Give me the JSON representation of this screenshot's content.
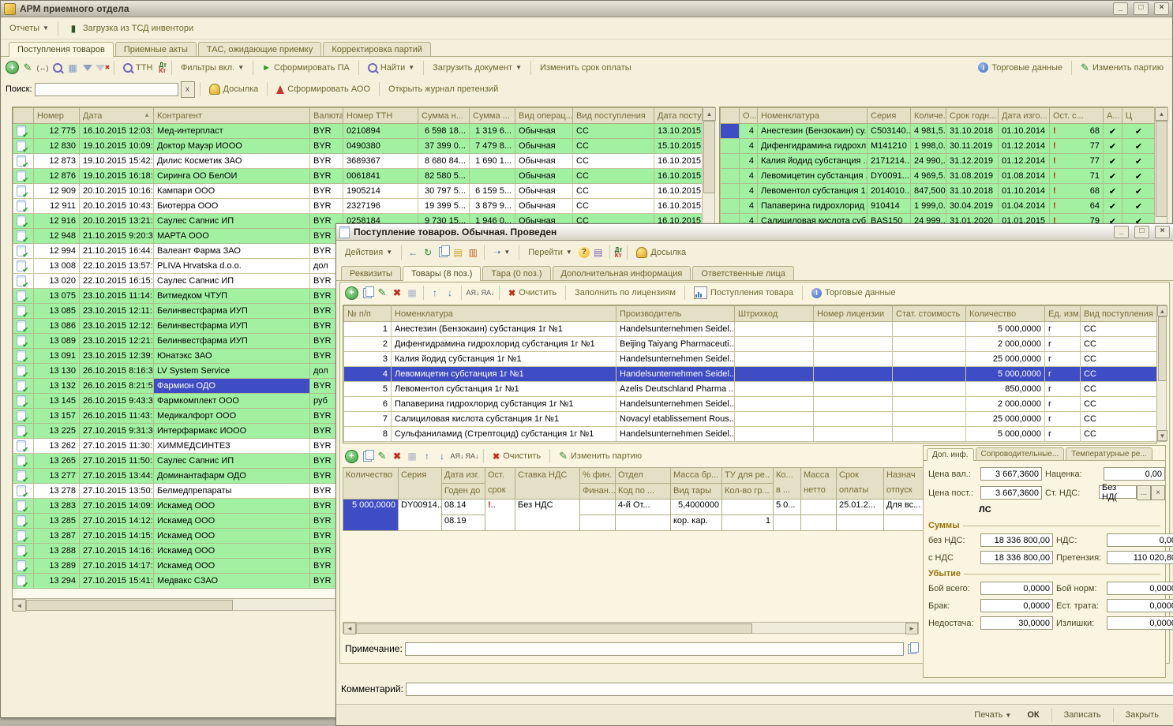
{
  "colors": {
    "row_green": "#a2f1a2",
    "selection_blue": "#3f4dc5",
    "header_text": "#776d38",
    "client_bg": "#f5f0db"
  },
  "main_window": {
    "title": "АРМ приемного отдела",
    "controls": {
      "minimize": "_",
      "maximize": "□",
      "close": "×"
    },
    "menu": {
      "reports": "Отчеты",
      "tsd_load": "Загрузка из ТСД инвентори"
    },
    "tabs": [
      {
        "label": "Поступления товаров"
      },
      {
        "label": "Приемные акты"
      },
      {
        "label": "ТАС, ожидающие приемку"
      },
      {
        "label": "Корректировка партий"
      }
    ],
    "toolbar": {
      "ttn": "ТТН",
      "dt": "Дт",
      "kt": "Кт",
      "filters": "Фильтры вкл.",
      "form_pa": "Сформировать ПА",
      "find": "Найти",
      "load_doc": "Загрузить документ",
      "change_due": "Изменить срок оплаты",
      "trade_data": "Торговые данные",
      "change_batch": "Изменить партию"
    },
    "search": {
      "label": "Поиск:",
      "value": "",
      "clear": "x",
      "dosylka": "Досылка",
      "form_aoo": "Сформировать АОО",
      "claims": "Открыть журнал претензий"
    },
    "receipts_table": {
      "sort_col": 2,
      "headers": [
        "",
        "Номер",
        "Дата",
        "Контрагент",
        "Валюта",
        "Номер ТТН",
        "Сумма н...",
        "Сумма ...",
        "Вид операц...",
        "Вид поступления",
        "Дата посту"
      ],
      "rows": [
        {
          "c": [
            "",
            "12 775",
            "16.10.2015 12:03:...",
            "Мед-интерпласт",
            "BYR",
            "0210894",
            "6 598 18...",
            "1 319 6...",
            "Обычная",
            "СС",
            "13.10.2015"
          ],
          "bg": "g"
        },
        {
          "c": [
            "",
            "12 830",
            "19.10.2015 10:09:...",
            "Доктор Мауэр ИООО",
            "BYR",
            "0490380",
            "37 399 0...",
            "7 479 8...",
            "Обычная",
            "СС",
            "15.10.2015"
          ],
          "bg": "g"
        },
        {
          "c": [
            "",
            "12 873",
            "19.10.2015 15:42:...",
            "Дилис Косметик ЗАО",
            "BYR",
            "3689367",
            "8 680 84...",
            "1 690 1...",
            "Обычная",
            "СС",
            "16.10.2015"
          ],
          "bg": "w"
        },
        {
          "c": [
            "",
            "12 876",
            "19.10.2015 16:18:...",
            "Сиринга  ОО БелОИ",
            "BYR",
            "0061841",
            "82 580 5...",
            "",
            "Обычная",
            "СС",
            "16.10.2015"
          ],
          "bg": "g"
        },
        {
          "c": [
            "",
            "12 909",
            "20.10.2015 10:16:...",
            "Кампари ООО",
            "BYR",
            "1905214",
            "30 797 5...",
            "6 159 5...",
            "Обычная",
            "СС",
            "16.10.2015"
          ],
          "bg": "w"
        },
        {
          "c": [
            "",
            "12 911",
            "20.10.2015 10:43:...",
            "Биотерра ООО",
            "BYR",
            "2327196",
            "19 399 5...",
            "3 879 9...",
            "Обычная",
            "СС",
            "16.10.2015"
          ],
          "bg": "w"
        },
        {
          "c": [
            "",
            "12 916",
            "20.10.2015 13:21:...",
            "Саулес Сапнис ИП",
            "BYR",
            "0258184",
            "9 730 15...",
            "1 946 0...",
            "Обычная",
            "СС",
            "16.10.2015"
          ],
          "bg": "g"
        },
        {
          "c": [
            "",
            "12 948",
            "21.10.2015 9:20:39",
            "МАРТА ООО",
            "BYR",
            "",
            "",
            "",
            "",
            "",
            ""
          ],
          "bg": "g"
        },
        {
          "c": [
            "",
            "12 994",
            "21.10.2015 16:44:...",
            "Валеант Фарма ЗАО",
            "BYR",
            "",
            "",
            "",
            "",
            "",
            ""
          ],
          "bg": "w"
        },
        {
          "c": [
            "",
            "13 008",
            "22.10.2015 13:57:...",
            "PLIVA Hrvatska d.o.o.",
            "дол",
            "",
            "",
            "",
            "",
            "",
            ""
          ],
          "bg": "w"
        },
        {
          "c": [
            "",
            "13 020",
            "22.10.2015 16:15:...",
            "Саулес Сапнис ИП",
            "BYR",
            "",
            "",
            "",
            "",
            "",
            ""
          ],
          "bg": "w"
        },
        {
          "c": [
            "",
            "13 075",
            "23.10.2015 11:14:...",
            "Витмедком ЧТУП",
            "BYR",
            "",
            "",
            "",
            "",
            "",
            ""
          ],
          "bg": "g"
        },
        {
          "c": [
            "",
            "13 085",
            "23.10.2015 12:11:...",
            "Белинвестфарма ИУП",
            "BYR",
            "",
            "",
            "",
            "",
            "",
            ""
          ],
          "bg": "g"
        },
        {
          "c": [
            "",
            "13 086",
            "23.10.2015 12:12:...",
            "Белинвестфарма ИУП",
            "BYR",
            "",
            "",
            "",
            "",
            "",
            ""
          ],
          "bg": "g"
        },
        {
          "c": [
            "",
            "13 089",
            "23.10.2015 12:21:...",
            "Белинвестфарма ИУП",
            "BYR",
            "",
            "",
            "",
            "",
            "",
            ""
          ],
          "bg": "g"
        },
        {
          "c": [
            "",
            "13 091",
            "23.10.2015 12:39:...",
            "Юнатэкс ЗАО",
            "BYR",
            "",
            "",
            "",
            "",
            "",
            ""
          ],
          "bg": "g"
        },
        {
          "c": [
            "",
            "13 130",
            "26.10.2015 8:16:38",
            "LV System Service",
            "дол",
            "",
            "",
            "",
            "",
            "",
            ""
          ],
          "bg": "g"
        },
        {
          "c": [
            "",
            "13 132",
            "26.10.2015 8:21:52",
            "Фармион ОДО",
            "BYR",
            "",
            "",
            "",
            "",
            "",
            ""
          ],
          "bg": "g",
          "sel_col": 3
        },
        {
          "c": [
            "",
            "13 145",
            "26.10.2015 9:43:36",
            "Фармкомплект ООО",
            "руб",
            "",
            "",
            "",
            "",
            "",
            ""
          ],
          "bg": "g"
        },
        {
          "c": [
            "",
            "13 157",
            "26.10.2015 11:43:...",
            "Медикалфорт ООО",
            "BYR",
            "",
            "",
            "",
            "",
            "",
            ""
          ],
          "bg": "g"
        },
        {
          "c": [
            "",
            "13 225",
            "27.10.2015 9:31:39",
            "Интерфармакс ИООО",
            "BYR",
            "",
            "",
            "",
            "",
            "",
            ""
          ],
          "bg": "g"
        },
        {
          "c": [
            "",
            "13 262",
            "27.10.2015 11:30:...",
            "ХИММЕДСИНТЕЗ",
            "BYR",
            "",
            "",
            "",
            "",
            "",
            ""
          ],
          "bg": "w"
        },
        {
          "c": [
            "",
            "13 265",
            "27.10.2015 11:50:...",
            "Саулес Сапнис ИП",
            "BYR",
            "",
            "",
            "",
            "",
            "",
            ""
          ],
          "bg": "g"
        },
        {
          "c": [
            "",
            "13 277",
            "27.10.2015 13:44:...",
            "Доминантафарм ОДО",
            "BYR",
            "",
            "",
            "",
            "",
            "",
            ""
          ],
          "bg": "g"
        },
        {
          "c": [
            "",
            "13 278",
            "27.10.2015 13:50:...",
            "Белмедпрепараты",
            "BYR",
            "",
            "",
            "",
            "",
            "",
            ""
          ],
          "bg": "w"
        },
        {
          "c": [
            "",
            "13 283",
            "27.10.2015 14:09:...",
            "Искамед ООО",
            "BYR",
            "",
            "",
            "",
            "",
            "",
            ""
          ],
          "bg": "g"
        },
        {
          "c": [
            "",
            "13 285",
            "27.10.2015 14:12:...",
            "Искамед ООО",
            "BYR",
            "",
            "",
            "",
            "",
            "",
            ""
          ],
          "bg": "g"
        },
        {
          "c": [
            "",
            "13 287",
            "27.10.2015 14:15:...",
            "Искамед ООО",
            "BYR",
            "",
            "",
            "",
            "",
            "",
            ""
          ],
          "bg": "g"
        },
        {
          "c": [
            "",
            "13 288",
            "27.10.2015 14:16:...",
            "Искамед ООО",
            "BYR",
            "",
            "",
            "",
            "",
            "",
            ""
          ],
          "bg": "g"
        },
        {
          "c": [
            "",
            "13 289",
            "27.10.2015 14:17:...",
            "Искамед ООО",
            "BYR",
            "",
            "",
            "",
            "",
            "",
            ""
          ],
          "bg": "g"
        },
        {
          "c": [
            "",
            "13 294",
            "27.10.2015 15:41:...",
            "Медвакс СЗАО",
            "BYR",
            "",
            "",
            "",
            "",
            "",
            ""
          ],
          "bg": "g"
        }
      ]
    },
    "nomen_table": {
      "headers": [
        "",
        "О...",
        "Номенклатура",
        "Серия",
        "Количе...",
        "Срок годн...",
        "Дата изго...",
        "Ост. с...",
        "А...",
        "Ц"
      ],
      "rows": [
        {
          "c": [
            "",
            "4",
            "Анестезин (Бензокаин) су...",
            "С503140...",
            "4 981,5...",
            "31.10.2018",
            "01.10.2014",
            "68",
            "✔",
            "✔"
          ],
          "bg": "g",
          "sel_col": 0
        },
        {
          "c": [
            "",
            "4",
            "Дифенгидрамина гидрохл...",
            "М141210",
            "1 998,0...",
            "30.11.2019",
            "01.12.2014",
            "77",
            "✔",
            "✔"
          ],
          "bg": "g"
        },
        {
          "c": [
            "",
            "4",
            "Калия йодид субстанция ...",
            "2171214...",
            "24 990,...",
            "31.12.2019",
            "01.12.2014",
            "77",
            "✔",
            "✔"
          ],
          "bg": "g"
        },
        {
          "c": [
            "",
            "4",
            "Левомицетин субстанция ...",
            "DY0091...",
            "4 969,5...",
            "31.08.2019",
            "01.08.2014",
            "71",
            "✔",
            "✔"
          ],
          "bg": "g"
        },
        {
          "c": [
            "",
            "4",
            "Левоментол субстанция 1...",
            "2014010...",
            "847,500",
            "31.10.2018",
            "01.10.2014",
            "68",
            "✔",
            "✔"
          ],
          "bg": "g"
        },
        {
          "c": [
            "",
            "4",
            "Папаверина гидрохлорид ...",
            "910414",
            "1 999,0...",
            "30.04.2019",
            "01.04.2014",
            "64",
            "✔",
            "✔"
          ],
          "bg": "g"
        },
        {
          "c": [
            "",
            "4",
            "Салициловая кислота суб...",
            "BAS150",
            "24 999...",
            "31.01.2020",
            "01.01.2015",
            "79",
            "✔",
            "✔"
          ],
          "bg": "g"
        }
      ]
    }
  },
  "dialog": {
    "title": "Поступление товаров. Обычная. Проведен",
    "controls": {
      "minimize": "_",
      "maximize": "□",
      "close": "×"
    },
    "toolbar": {
      "actions": "Действия",
      "goto": "Перейти",
      "dt": "Дт",
      "kt": "Кт",
      "dosylka": "Досылка"
    },
    "tabs": [
      {
        "label": "Реквизиты"
      },
      {
        "label": "Товары (8 поз.)"
      },
      {
        "label": "Тара (0 поз.)"
      },
      {
        "label": "Дополнительная информация"
      },
      {
        "label": "Ответственные лица"
      }
    ],
    "goods_toolbar": {
      "clear": "Очистить",
      "fill_lic": "Заполнить по лицензиям",
      "receipts": "Поступления товара",
      "trade": "Торговые данные",
      "sort_az": "АЯ↓",
      "sort_za": "ЯА↓"
    },
    "goods_table": {
      "headers": [
        "№ п/п",
        "Номенклатура",
        "Производитель",
        "Штрихкод",
        "Номер лицензии",
        "Стат. стоимость",
        "Количество",
        "Ед. изм.",
        "Вид поступления"
      ],
      "rows": [
        {
          "c": [
            "1",
            "Анестезин (Бензокаин) субстанция 1г №1",
            "Handelsunternehmen Seidel...",
            "",
            "",
            "",
            "5 000,0000",
            "г",
            "СС"
          ],
          "bg": "w"
        },
        {
          "c": [
            "2",
            "Дифенгидрамина гидрохлорид субстанция 1г №1",
            "Beijing Taiyang Pharmaceuti...",
            "",
            "",
            "",
            "2 000,0000",
            "г",
            "СС"
          ],
          "bg": "w"
        },
        {
          "c": [
            "3",
            "Калия йодид субстанция 1г №1",
            "Handelsunternehmen Seidel...",
            "",
            "",
            "",
            "25 000,0000",
            "г",
            "СС"
          ],
          "bg": "w"
        },
        {
          "c": [
            "4",
            "Левомицетин субстанция 1г №1",
            "Handelsunternehmen Seidel...",
            "",
            "",
            "",
            "5 000,0000",
            "г",
            "СС"
          ],
          "bg": "w",
          "sel_row": true
        },
        {
          "c": [
            "5",
            "Левоментол субстанция 1г №1",
            "Azelis Deutschland Pharma ...",
            "",
            "",
            "",
            "850,0000",
            "г",
            "СС"
          ],
          "bg": "w"
        },
        {
          "c": [
            "6",
            "Папаверина гидрохлорид субстанция 1г №1",
            "Handelsunternehmen Seidel...",
            "",
            "",
            "",
            "2 000,0000",
            "г",
            "СС"
          ],
          "bg": "w"
        },
        {
          "c": [
            "7",
            "Салициловая кислота субстанция 1г №1",
            "Novacyl etablissement Rous...",
            "",
            "",
            "",
            "25 000,0000",
            "г",
            "СС"
          ],
          "bg": "w"
        },
        {
          "c": [
            "8",
            "Сульфаниламид (Стрептоцид) субстанция 1г №1",
            "Handelsunternehmen Seidel...",
            "",
            "",
            "",
            "5 000,0000",
            "г",
            "СС"
          ],
          "bg": "w"
        }
      ]
    },
    "series_toolbar": {
      "clear": "Очистить",
      "change_batch": "Изменить партию",
      "sort_az": "АЯ↓",
      "sort_za": "ЯА↓"
    },
    "series_table": {
      "h": {
        "qty": "Количество",
        "series": "Серия",
        "mfg": "Дата изг.",
        "best": "Годен до",
        "rest1": "Ост.",
        "rest2": "срок",
        "vat": "Ставка НДС",
        "pfin": "% фин...",
        "fin": "Финан...",
        "dept": "Отдел",
        "code": "Код по ...",
        "gross": "Масса бр...",
        "tare": "Вид тары",
        "tu": "ТУ для ре...",
        "grp": "Кол-во гр...",
        "ko1": "Ко...",
        "ko2": "в ...",
        "net1": "Масса",
        "net2": "нетто",
        "due1": "Срок",
        "due2": "оплаты",
        "purp1": "Назнач",
        "purp2": "отпуск"
      },
      "r": {
        "qty": "5 000,0000",
        "series": "DY00914...",
        "mfg": "08.14",
        "best": "08.19",
        "rest_dots": "..",
        "vat": "Без НДС",
        "dept": "4-й От...",
        "gross": "5,4000000",
        "tare": "кор. кар.",
        "grp_qty": "1",
        "ko": "5 0...",
        "due": "25.01.2...",
        "purp": "Для вс..."
      }
    },
    "side_panel": {
      "tabs": [
        {
          "label": "Доп. инф."
        },
        {
          "label": "Сопроводительные..."
        },
        {
          "label": "Температурные ре..."
        }
      ],
      "price_cur_label": "Цена вал.:",
      "price_cur": "3 667,3600",
      "markup_label": "Наценка:",
      "markup": "0,00",
      "price_post_label": "Цена пост.:",
      "price_post": "3 667,3600",
      "vat_label": "Ст. НДС:",
      "vat_value": "Без НД(",
      "vat_ellipsis": "...",
      "vat_clear": "×",
      "ls": "ЛС",
      "sums": {
        "title": "Суммы",
        "no_vat_label": "без НДС:",
        "no_vat": "18 336 800,00",
        "vat_label": "НДС:",
        "vat": "0,00",
        "with_vat_label": "с НДС",
        "with_vat": "18 336 800,00",
        "claim_label": "Претензия:",
        "claim": "110 020,80"
      },
      "loss": {
        "title": "Убытие",
        "fields": [
          [
            "Бой всего:",
            "0,0000"
          ],
          [
            "Бой норм:",
            "0,0000"
          ],
          [
            "Брак:",
            "0,0000"
          ],
          [
            "Ест. трата:",
            "0,0000"
          ],
          [
            "Недостача:",
            "30,0000"
          ],
          [
            "Излишки:",
            "0,0000"
          ]
        ]
      }
    },
    "note_label": "Примечание:",
    "note_value": "",
    "comment_label": "Комментарий:",
    "comment_value": "",
    "footer": {
      "print": "Печать",
      "ok": "ОК",
      "save": "Записать",
      "close": "Закрыть"
    }
  }
}
